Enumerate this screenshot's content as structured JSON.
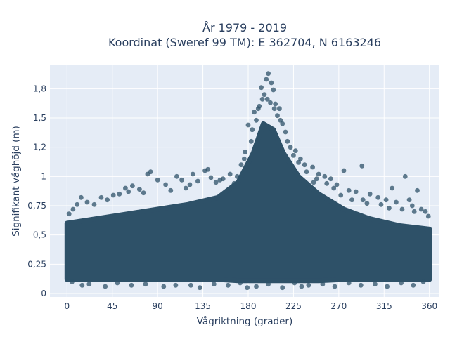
{
  "chart_data": {
    "type": "scatter",
    "title_line1": "År 1979 - 2019",
    "title_line2": "Koordinat (Sweref 99 TM): E 362704, N 6163246",
    "xlabel": "Vågriktning (grader)",
    "ylabel": "Signifikant våghöjd (m)",
    "xlim": [
      -17,
      370
    ],
    "ylim": [
      -0.03,
      1.95
    ],
    "x_ticks": [
      {
        "value": 0,
        "label": "0"
      },
      {
        "value": 45,
        "label": "45"
      },
      {
        "value": 90,
        "label": "90"
      },
      {
        "value": 135,
        "label": "135"
      },
      {
        "value": 180,
        "label": "180"
      },
      {
        "value": 225,
        "label": "225"
      },
      {
        "value": 270,
        "label": "270"
      },
      {
        "value": 315,
        "label": "315"
      },
      {
        "value": 360,
        "label": "360"
      }
    ],
    "y_ticks": [
      {
        "value": 0,
        "label": "0"
      },
      {
        "value": 0.25,
        "label": "0,25"
      },
      {
        "value": 0.5,
        "label": "0,5"
      },
      {
        "value": 0.75,
        "label": "0,75"
      },
      {
        "value": 1.0,
        "label": "1"
      },
      {
        "value": 1.25,
        "label": "1,2"
      },
      {
        "value": 1.5,
        "label": "1,5"
      },
      {
        "value": 1.75,
        "label": "1,8"
      }
    ],
    "grid": true,
    "background_color": "#e5ecf6",
    "marker_color": "#2e5168",
    "dense_band": [
      {
        "x": 0,
        "low": 0.12,
        "high": 0.6
      },
      {
        "x": 30,
        "low": 0.12,
        "high": 0.64
      },
      {
        "x": 60,
        "low": 0.12,
        "high": 0.68
      },
      {
        "x": 90,
        "low": 0.12,
        "high": 0.72
      },
      {
        "x": 120,
        "low": 0.12,
        "high": 0.76
      },
      {
        "x": 150,
        "low": 0.12,
        "high": 0.82
      },
      {
        "x": 170,
        "low": 0.11,
        "high": 0.95
      },
      {
        "x": 185,
        "low": 0.11,
        "high": 1.2
      },
      {
        "x": 195,
        "low": 0.11,
        "high": 1.45
      },
      {
        "x": 205,
        "low": 0.11,
        "high": 1.4
      },
      {
        "x": 215,
        "low": 0.11,
        "high": 1.2
      },
      {
        "x": 230,
        "low": 0.11,
        "high": 1.0
      },
      {
        "x": 250,
        "low": 0.11,
        "high": 0.85
      },
      {
        "x": 275,
        "low": 0.12,
        "high": 0.72
      },
      {
        "x": 300,
        "low": 0.12,
        "high": 0.64
      },
      {
        "x": 330,
        "low": 0.12,
        "high": 0.58
      },
      {
        "x": 360,
        "low": 0.12,
        "high": 0.55
      }
    ],
    "points": [
      [
        200,
        1.88
      ],
      [
        198,
        1.83
      ],
      [
        203,
        1.8
      ],
      [
        193,
        1.76
      ],
      [
        205,
        1.74
      ],
      [
        196,
        1.7
      ],
      [
        199,
        1.66
      ],
      [
        207,
        1.62
      ],
      [
        191,
        1.6
      ],
      [
        211,
        1.58
      ],
      [
        186,
        1.55
      ],
      [
        188,
        1.48
      ],
      [
        214,
        1.45
      ],
      [
        180,
        1.44
      ],
      [
        217,
        1.38
      ],
      [
        209,
        1.52
      ],
      [
        222,
        1.25
      ],
      [
        183,
        1.3
      ],
      [
        227,
        1.22
      ],
      [
        176,
        1.15
      ],
      [
        232,
        1.15
      ],
      [
        236,
        1.1
      ],
      [
        244,
        1.08
      ],
      [
        250,
        1.02
      ],
      [
        256,
        1.0
      ],
      [
        262,
        0.98
      ],
      [
        293,
        1.09
      ],
      [
        275,
        1.05
      ],
      [
        245,
        0.95
      ],
      [
        268,
        0.93
      ],
      [
        280,
        0.88
      ],
      [
        287,
        0.87
      ],
      [
        301,
        0.85
      ],
      [
        309,
        0.82
      ],
      [
        317,
        0.8
      ],
      [
        323,
        0.9
      ],
      [
        327,
        0.78
      ],
      [
        336,
        1.0
      ],
      [
        340,
        0.8
      ],
      [
        348,
        0.88
      ],
      [
        352,
        0.72
      ],
      [
        356,
        0.7
      ],
      [
        343,
        0.75
      ],
      [
        333,
        0.72
      ],
      [
        312,
        0.76
      ],
      [
        294,
        0.8
      ],
      [
        169,
        1.0
      ],
      [
        162,
        1.02
      ],
      [
        155,
        0.98
      ],
      [
        148,
        0.95
      ],
      [
        140,
        1.06
      ],
      [
        137,
        1.05
      ],
      [
        130,
        0.96
      ],
      [
        125,
        1.02
      ],
      [
        114,
        0.97
      ],
      [
        109,
        1.0
      ],
      [
        98,
        0.93
      ],
      [
        90,
        0.97
      ],
      [
        83,
        1.04
      ],
      [
        80,
        1.02
      ],
      [
        72,
        0.89
      ],
      [
        65,
        0.92
      ],
      [
        58,
        0.9
      ],
      [
        52,
        0.85
      ],
      [
        46,
        0.84
      ],
      [
        40,
        0.8
      ],
      [
        34,
        0.82
      ],
      [
        27,
        0.76
      ],
      [
        20,
        0.78
      ],
      [
        14,
        0.82
      ],
      [
        10,
        0.76
      ],
      [
        6,
        0.72
      ],
      [
        2,
        0.68
      ],
      [
        118,
        0.9
      ],
      [
        103,
        0.88
      ],
      [
        76,
        0.86
      ],
      [
        61,
        0.87
      ],
      [
        122,
        0.93
      ],
      [
        143,
        0.99
      ],
      [
        152,
        0.97
      ],
      [
        166,
        0.94
      ],
      [
        173,
        1.1
      ],
      [
        177,
        1.21
      ],
      [
        184,
        1.4
      ],
      [
        190,
        1.58
      ],
      [
        194,
        1.66
      ],
      [
        202,
        1.63
      ],
      [
        206,
        1.58
      ],
      [
        212,
        1.48
      ],
      [
        219,
        1.3
      ],
      [
        225,
        1.18
      ],
      [
        230,
        1.12
      ],
      [
        238,
        1.04
      ],
      [
        248,
        0.98
      ],
      [
        258,
        0.94
      ],
      [
        265,
        0.9
      ],
      [
        272,
        0.84
      ],
      [
        283,
        0.8
      ],
      [
        298,
        0.77
      ],
      [
        320,
        0.73
      ],
      [
        345,
        0.7
      ],
      [
        359,
        0.66
      ],
      [
        15,
        0.07
      ],
      [
        38,
        0.06
      ],
      [
        64,
        0.07
      ],
      [
        96,
        0.06
      ],
      [
        132,
        0.05
      ],
      [
        160,
        0.07
      ],
      [
        188,
        0.06
      ],
      [
        214,
        0.05
      ],
      [
        240,
        0.07
      ],
      [
        266,
        0.06
      ],
      [
        292,
        0.07
      ],
      [
        318,
        0.06
      ],
      [
        344,
        0.07
      ],
      [
        22,
        0.08
      ],
      [
        50,
        0.09
      ],
      [
        78,
        0.08
      ],
      [
        108,
        0.07
      ],
      [
        146,
        0.08
      ],
      [
        172,
        0.09
      ],
      [
        200,
        0.08
      ],
      [
        226,
        0.09
      ],
      [
        254,
        0.08
      ],
      [
        280,
        0.09
      ],
      [
        306,
        0.08
      ],
      [
        332,
        0.09
      ],
      [
        354,
        0.1
      ],
      [
        5,
        0.1
      ],
      [
        123,
        0.07
      ],
      [
        179,
        0.05
      ],
      [
        233,
        0.06
      ]
    ]
  }
}
